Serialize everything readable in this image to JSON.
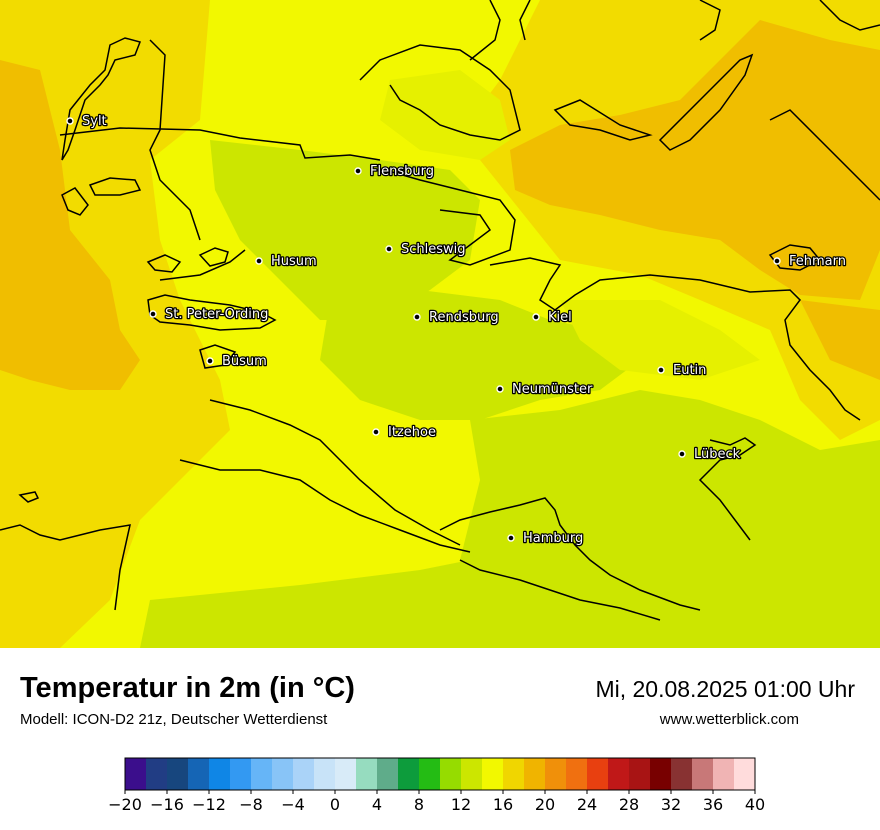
{
  "title": "Temperatur in 2m (in °C)",
  "subtitle": "Modell: ICON-D2 21z, Deutscher Wetterdienst",
  "datetime": "Mi, 20.08.2025 01:00 Uhr",
  "website": "www.wetterblick.com",
  "colors": {
    "t12": "#cce600",
    "t14": "#e6f000",
    "t16": "#f4f400",
    "t18": "#f2dc00",
    "t20": "#f0be00"
  },
  "cities": [
    {
      "id": "sylt",
      "name": "Sylt"
    },
    {
      "id": "flensburg",
      "name": "Flensburg"
    },
    {
      "id": "schleswig",
      "name": "Schleswig"
    },
    {
      "id": "husum",
      "name": "Husum"
    },
    {
      "id": "fehmarn",
      "name": "Fehmarn"
    },
    {
      "id": "st-peter-ording",
      "name": "St. Peter-Ording"
    },
    {
      "id": "rendsburg",
      "name": "Rendsburg"
    },
    {
      "id": "kiel",
      "name": "Kiel"
    },
    {
      "id": "buesum",
      "name": "Büsum"
    },
    {
      "id": "eutin",
      "name": "Eutin"
    },
    {
      "id": "neumuenster",
      "name": "Neumünster"
    },
    {
      "id": "itzehoe",
      "name": "Itzehoe"
    },
    {
      "id": "luebeck",
      "name": "Lübeck"
    },
    {
      "id": "hamburg",
      "name": "Hamburg"
    }
  ],
  "legend": {
    "min": -20,
    "max": 40,
    "step": 2,
    "colors": [
      "#3b0e8c",
      "#213d84",
      "#17467e",
      "#1565b5",
      "#0f86e6",
      "#3399f2",
      "#66b5f7",
      "#88c4f7",
      "#aad3f8",
      "#c8e3f8",
      "#d8ebf8",
      "#96dcbf",
      "#5fac8a",
      "#0d9c3c",
      "#24bc14",
      "#96dc00",
      "#cce600",
      "#f2f800",
      "#f0d600",
      "#f0b400",
      "#f0900a",
      "#f07010",
      "#e84010",
      "#c01818",
      "#a81414",
      "#780000",
      "#883232",
      "#c87878",
      "#f0b4b4",
      "#ffdcdc"
    ],
    "tick_labels": [
      "−20",
      "−16",
      "−12",
      "−8",
      "−4",
      "0",
      "4",
      "8",
      "12",
      "16",
      "20",
      "24",
      "28",
      "32",
      "36",
      "40"
    ]
  }
}
